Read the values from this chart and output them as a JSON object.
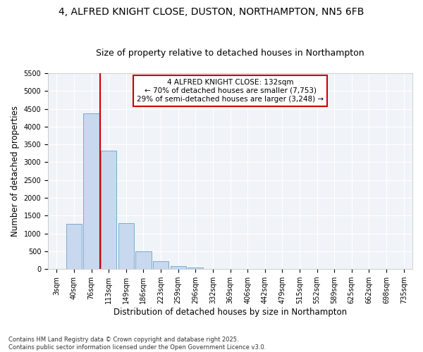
{
  "title": "4, ALFRED KNIGHT CLOSE, DUSTON, NORTHAMPTON, NN5 6FB",
  "subtitle": "Size of property relative to detached houses in Northampton",
  "xlabel": "Distribution of detached houses by size in Northampton",
  "ylabel": "Number of detached properties",
  "categories": [
    "3sqm",
    "40sqm",
    "76sqm",
    "113sqm",
    "149sqm",
    "186sqm",
    "223sqm",
    "259sqm",
    "296sqm",
    "332sqm",
    "369sqm",
    "406sqm",
    "442sqm",
    "479sqm",
    "515sqm",
    "552sqm",
    "589sqm",
    "625sqm",
    "662sqm",
    "698sqm",
    "735sqm"
  ],
  "values": [
    0,
    1270,
    4380,
    3330,
    1280,
    500,
    220,
    75,
    50,
    0,
    0,
    0,
    0,
    0,
    0,
    0,
    0,
    0,
    0,
    0,
    0
  ],
  "bar_color": "#c8d8ee",
  "bar_edge_color": "#7aabcc",
  "vline_color": "#cc0000",
  "vline_index": 2.5,
  "annotation_text": "4 ALFRED KNIGHT CLOSE: 132sqm\n← 70% of detached houses are smaller (7,753)\n29% of semi-detached houses are larger (3,248) →",
  "annotation_box_color": "#cc0000",
  "ylim": [
    0,
    5500
  ],
  "yticks": [
    0,
    500,
    1000,
    1500,
    2000,
    2500,
    3000,
    3500,
    4000,
    4500,
    5000,
    5500
  ],
  "bg_color": "#ffffff",
  "plot_bg_color": "#f0f4f8",
  "grid_color": "#ffffff",
  "footnote": "Contains HM Land Registry data © Crown copyright and database right 2025.\nContains public sector information licensed under the Open Government Licence v3.0.",
  "title_fontsize": 10,
  "subtitle_fontsize": 9,
  "label_fontsize": 8.5,
  "tick_fontsize": 7,
  "annot_fontsize": 7.5,
  "footnote_fontsize": 6
}
